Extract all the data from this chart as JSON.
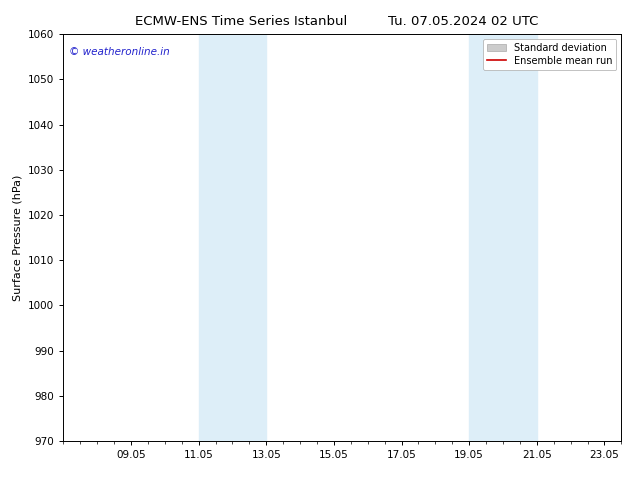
{
  "title_left": "ECMW-ENS Time Series Istanbul",
  "title_right": "Tu. 07.05.2024 02 UTC",
  "ylabel": "Surface Pressure (hPa)",
  "ylim": [
    970,
    1060
  ],
  "yticks": [
    970,
    980,
    990,
    1000,
    1010,
    1020,
    1030,
    1040,
    1050,
    1060
  ],
  "xlim": [
    0,
    16
  ],
  "xtick_labels": [
    "09.05",
    "11.05",
    "13.05",
    "15.05",
    "17.05",
    "19.05",
    "21.05",
    "23.05"
  ],
  "xtick_positions": [
    2,
    4,
    6,
    8,
    10,
    12,
    14,
    16
  ],
  "shaded_bands": [
    {
      "x_start": 4,
      "x_end": 6
    },
    {
      "x_start": 12,
      "x_end": 14
    }
  ],
  "shaded_color": "#ddeef8",
  "watermark_text": "© weatheronline.in",
  "watermark_color": "#2222cc",
  "legend_items": [
    "Standard deviation",
    "Ensemble mean run"
  ],
  "legend_patch_color": "#cccccc",
  "legend_line_color": "#cc0000",
  "background_color": "#ffffff",
  "title_fontsize": 9.5,
  "label_fontsize": 8,
  "tick_fontsize": 7.5,
  "watermark_fontsize": 7.5,
  "legend_fontsize": 7
}
